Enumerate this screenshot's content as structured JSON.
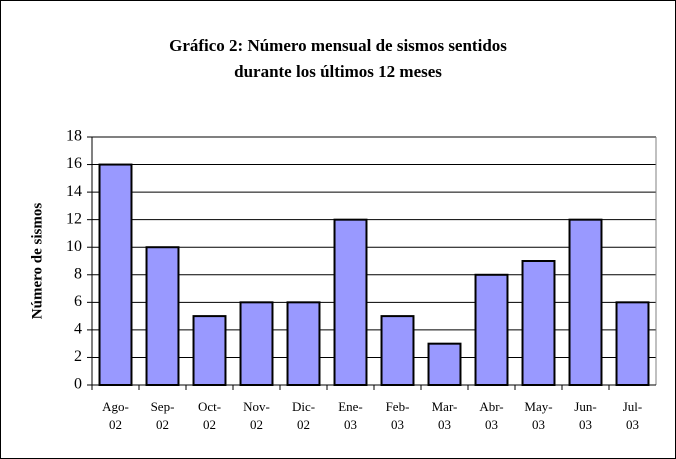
{
  "chart_data": {
    "type": "bar",
    "title": "Gráfico 2: Número mensual de sismos sentidos\ndurante los últimos 12 meses",
    "y_label": "Número de sismos",
    "categories": [
      "Ago-02",
      "Sep-02",
      "Oct-02",
      "Nov-02",
      "Dic-02",
      "Ene-03",
      "Feb-03",
      "Mar-03",
      "Abr-03",
      "May-03",
      "Jun-03",
      "Jul-03"
    ],
    "values": [
      16,
      10,
      5,
      6,
      6,
      12,
      5,
      3,
      8,
      9,
      12,
      6
    ],
    "color": "#9999ff",
    "ylim": [
      0,
      18
    ],
    "yticks": [
      0,
      2,
      4,
      6,
      8,
      10,
      12,
      14,
      16,
      18
    ],
    "grid": true
  }
}
